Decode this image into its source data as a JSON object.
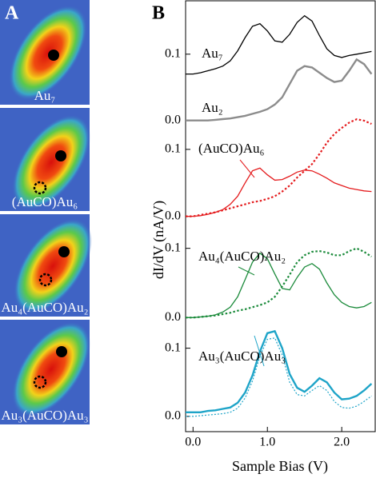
{
  "panel_labels": {
    "a": "A",
    "b": "B"
  },
  "images": [
    {
      "label": "Au₇"
    },
    {
      "label": "(AuCO)Au₆"
    },
    {
      "label": "Au₄(AuCO)Au₂"
    },
    {
      "label": "Au₃(AuCO)Au₃"
    }
  ],
  "xlabel": "Sample Bias (V)",
  "ylabel": "dI/dV (nA/V)",
  "chart_data": [
    {
      "type": "line",
      "xlim": [
        -0.1,
        2.45
      ],
      "ylim": [
        -0.01,
        0.16
      ],
      "yticks": [
        {
          "value": 0,
          "label": "0.0"
        },
        0.1
      ],
      "x": [
        -0.1,
        0,
        0.1,
        0.2,
        0.3,
        0.4,
        0.5,
        0.6,
        0.7,
        0.8,
        0.9,
        1.0,
        1.1,
        1.2,
        1.3,
        1.4,
        1.5,
        1.6,
        1.7,
        1.8,
        1.9,
        2.0,
        2.1,
        2.2,
        2.3,
        2.4
      ],
      "series": [
        {
          "name": "Au₇",
          "color": "#000000",
          "dash": false,
          "values": [
            0.07,
            0.07,
            0.072,
            0.075,
            0.078,
            0.082,
            0.09,
            0.105,
            0.125,
            0.142,
            0.146,
            0.135,
            0.12,
            0.118,
            0.13,
            0.148,
            0.158,
            0.15,
            0.128,
            0.108,
            0.098,
            0.095,
            0.098,
            0.1,
            0.102,
            0.104
          ]
        },
        {
          "name": "Au₂",
          "color": "#8c8c8c",
          "dash": false,
          "values": [
            0,
            0,
            0,
            0,
            0.001,
            0.002,
            0.003,
            0.005,
            0.007,
            0.01,
            0.013,
            0.017,
            0.024,
            0.035,
            0.055,
            0.075,
            0.082,
            0.08,
            0.072,
            0.064,
            0.058,
            0.06,
            0.075,
            0.092,
            0.085,
            0.07
          ]
        }
      ]
    },
    {
      "type": "line",
      "xlim": [
        -0.1,
        2.45
      ],
      "ylim": [
        -0.01,
        0.15
      ],
      "label": "(AuCO)Au₆",
      "yticks": [
        {
          "value": 0,
          "label": "0.0"
        },
        0.1
      ],
      "x": [
        -0.1,
        0,
        0.1,
        0.2,
        0.3,
        0.4,
        0.5,
        0.6,
        0.7,
        0.8,
        0.9,
        1.0,
        1.1,
        1.2,
        1.3,
        1.4,
        1.5,
        1.6,
        1.7,
        1.8,
        1.9,
        2.0,
        2.1,
        2.2,
        2.3,
        2.4
      ],
      "series": [
        {
          "color": "#e41a1c",
          "dash": false,
          "values": [
            0,
            0,
            0.001,
            0.003,
            0.006,
            0.01,
            0.018,
            0.03,
            0.05,
            0.068,
            0.072,
            0.062,
            0.054,
            0.055,
            0.06,
            0.066,
            0.069,
            0.068,
            0.063,
            0.057,
            0.05,
            0.046,
            0.042,
            0.04,
            0.038,
            0.037
          ]
        },
        {
          "color": "#e41a1c",
          "dash": true,
          "values": [
            0,
            0,
            0.002,
            0.004,
            0.006,
            0.009,
            0.012,
            0.015,
            0.018,
            0.021,
            0.023,
            0.026,
            0.03,
            0.037,
            0.046,
            0.058,
            0.068,
            0.078,
            0.093,
            0.11,
            0.123,
            0.132,
            0.14,
            0.145,
            0.143,
            0.138
          ]
        }
      ]
    },
    {
      "type": "line",
      "xlim": [
        -0.1,
        2.45
      ],
      "ylim": [
        -0.01,
        0.11
      ],
      "label": "Au₄(AuCO)Au₂",
      "yticks": [
        {
          "value": 0,
          "label": "0.0"
        },
        0.1
      ],
      "x": [
        -0.1,
        0,
        0.1,
        0.2,
        0.3,
        0.4,
        0.5,
        0.6,
        0.7,
        0.8,
        0.9,
        1.0,
        1.1,
        1.2,
        1.3,
        1.4,
        1.5,
        1.6,
        1.7,
        1.8,
        1.9,
        2.0,
        2.1,
        2.2,
        2.3,
        2.4
      ],
      "series": [
        {
          "color": "#1a8a3a",
          "dash": false,
          "values": [
            0,
            0,
            0.001,
            0.002,
            0.004,
            0.008,
            0.015,
            0.03,
            0.055,
            0.08,
            0.093,
            0.085,
            0.063,
            0.042,
            0.04,
            0.058,
            0.073,
            0.078,
            0.07,
            0.05,
            0.033,
            0.022,
            0.016,
            0.014,
            0.016,
            0.022
          ]
        },
        {
          "color": "#1a8a3a",
          "dash": true,
          "values": [
            0,
            0,
            0.001,
            0.002,
            0.003,
            0.005,
            0.007,
            0.01,
            0.012,
            0.015,
            0.018,
            0.022,
            0.03,
            0.045,
            0.062,
            0.08,
            0.09,
            0.095,
            0.096,
            0.094,
            0.09,
            0.09,
            0.096,
            0.1,
            0.095,
            0.088
          ]
        }
      ]
    },
    {
      "type": "line",
      "xlim": [
        -0.1,
        2.45
      ],
      "ylim": [
        -0.02,
        0.13
      ],
      "label": "Au₃(AuCO)Au₃",
      "yticks": [
        {
          "value": 0,
          "label": "0.0"
        },
        0.1
      ],
      "xticks": [
        {
          "value": 0,
          "label": "0.0"
        },
        {
          "value": 1,
          "label": "1.0"
        },
        {
          "value": 2,
          "label": "2.0"
        }
      ],
      "x": [
        -0.1,
        0,
        0.1,
        0.2,
        0.3,
        0.4,
        0.5,
        0.6,
        0.7,
        0.8,
        0.9,
        1.0,
        1.1,
        1.2,
        1.3,
        1.4,
        1.5,
        1.6,
        1.7,
        1.8,
        1.9,
        2.0,
        2.1,
        2.2,
        2.3,
        2.4
      ],
      "series": [
        {
          "color": "#1ea4c8",
          "dash": false,
          "values": [
            0.006,
            0.006,
            0.006,
            0.008,
            0.009,
            0.011,
            0.013,
            0.02,
            0.035,
            0.06,
            0.095,
            0.122,
            0.125,
            0.1,
            0.062,
            0.042,
            0.036,
            0.045,
            0.056,
            0.05,
            0.035,
            0.025,
            0.026,
            0.03,
            0.038,
            0.048
          ]
        },
        {
          "color": "#1ea4c8",
          "dash": true,
          "values": [
            0,
            0,
            0.001,
            0.002,
            0.003,
            0.004,
            0.006,
            0.012,
            0.027,
            0.052,
            0.088,
            0.113,
            0.115,
            0.09,
            0.05,
            0.032,
            0.03,
            0.038,
            0.045,
            0.038,
            0.022,
            0.013,
            0.012,
            0.015,
            0.022,
            0.03
          ]
        }
      ]
    }
  ]
}
